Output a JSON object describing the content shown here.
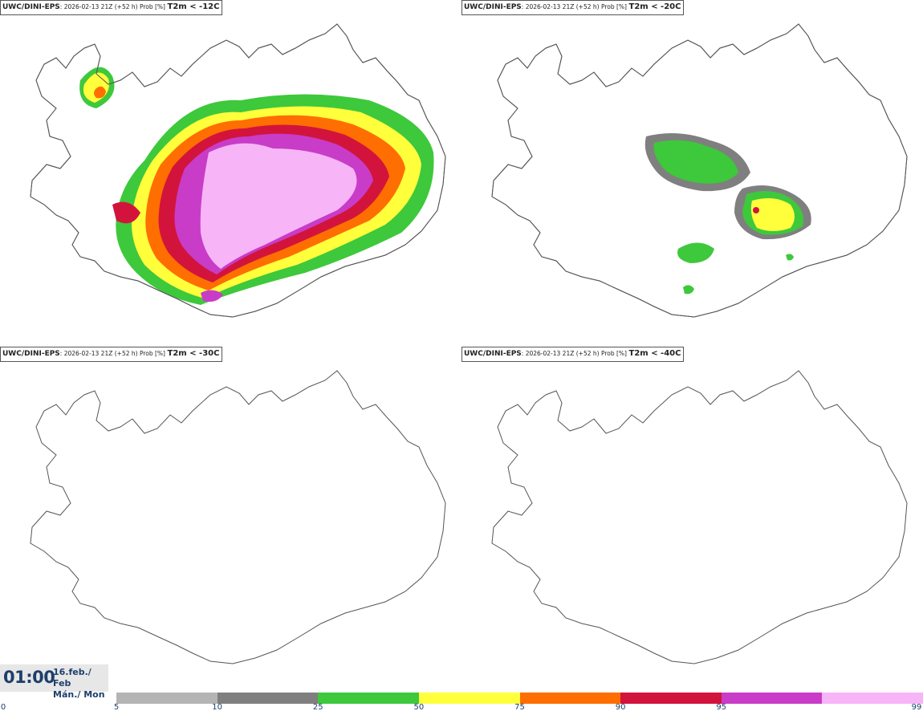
{
  "panels": [
    {
      "model": "UWC/DINI-EPS",
      "subtitle": ": 2026-02-13 21Z (+52 h) Prob [%]",
      "threshold": "T2m < -12C"
    },
    {
      "model": "UWC/DINI-EPS",
      "subtitle": ": 2026-02-13 21Z (+52 h) Prob [%]",
      "threshold": "T2m < -20C"
    },
    {
      "model": "UWC/DINI-EPS",
      "subtitle": ": 2026-02-13 21Z (+52 h) Prob [%]",
      "threshold": "T2m < -30C"
    },
    {
      "model": "UWC/DINI-EPS",
      "subtitle": ": 2026-02-13 21Z (+52 h) Prob [%]",
      "threshold": "T2m < -40C"
    }
  ],
  "time": "01:00",
  "date_line1": "16.feb./ Feb",
  "date_line2": "Mán./ Mon",
  "colorbar": {
    "ticks": [
      "0",
      "5",
      "10",
      "25",
      "50",
      "75",
      "90",
      "95",
      "99"
    ],
    "colors": [
      "#b4b4b4",
      "#7f7f7f",
      "#3ec83c",
      "#ffff3c",
      "#ff6e00",
      "#d2143c",
      "#c83cc8",
      "#f7b4f7"
    ]
  }
}
